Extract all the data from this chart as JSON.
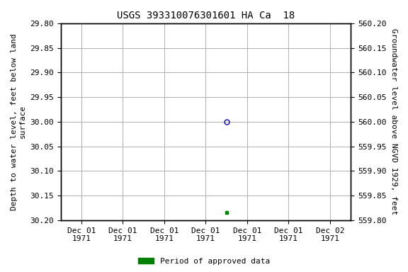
{
  "title": "USGS 393310076301601 HA Ca  18",
  "point_open_x": 3.5,
  "point_open_y": 30.0,
  "point_filled_x": 3.5,
  "point_filled_y": 30.185,
  "xlim_start": 0.0,
  "xlim_end": 6.0,
  "ylim_top": 29.8,
  "ylim_bottom": 30.2,
  "left_yticks": [
    29.8,
    29.85,
    29.9,
    29.95,
    30.0,
    30.05,
    30.1,
    30.15,
    30.2
  ],
  "right_yticks": [
    560.2,
    560.15,
    560.1,
    560.05,
    560.0,
    559.95,
    559.9,
    559.85,
    559.8
  ],
  "xtick_positions": [
    0,
    1,
    2,
    3,
    4,
    5,
    6
  ],
  "xtick_labels": [
    "Dec 01\n1971",
    "Dec 01\n1971",
    "Dec 01\n1971",
    "Dec 01\n1971",
    "Dec 01\n1971",
    "Dec 01\n1971",
    "Dec 02\n1971"
  ],
  "ylabel_left": "Depth to water level, feet below land\nsurface",
  "ylabel_right": "Groundwater level above NGVD 1929, feet",
  "legend_label": "Period of approved data",
  "legend_color": "#008000",
  "open_point_color": "#0000cc",
  "filled_point_color": "#008000",
  "background_color": "#ffffff",
  "grid_color": "#b0b0b0",
  "title_fontsize": 10,
  "axis_label_fontsize": 8,
  "tick_fontsize": 8,
  "legend_fontsize": 8
}
